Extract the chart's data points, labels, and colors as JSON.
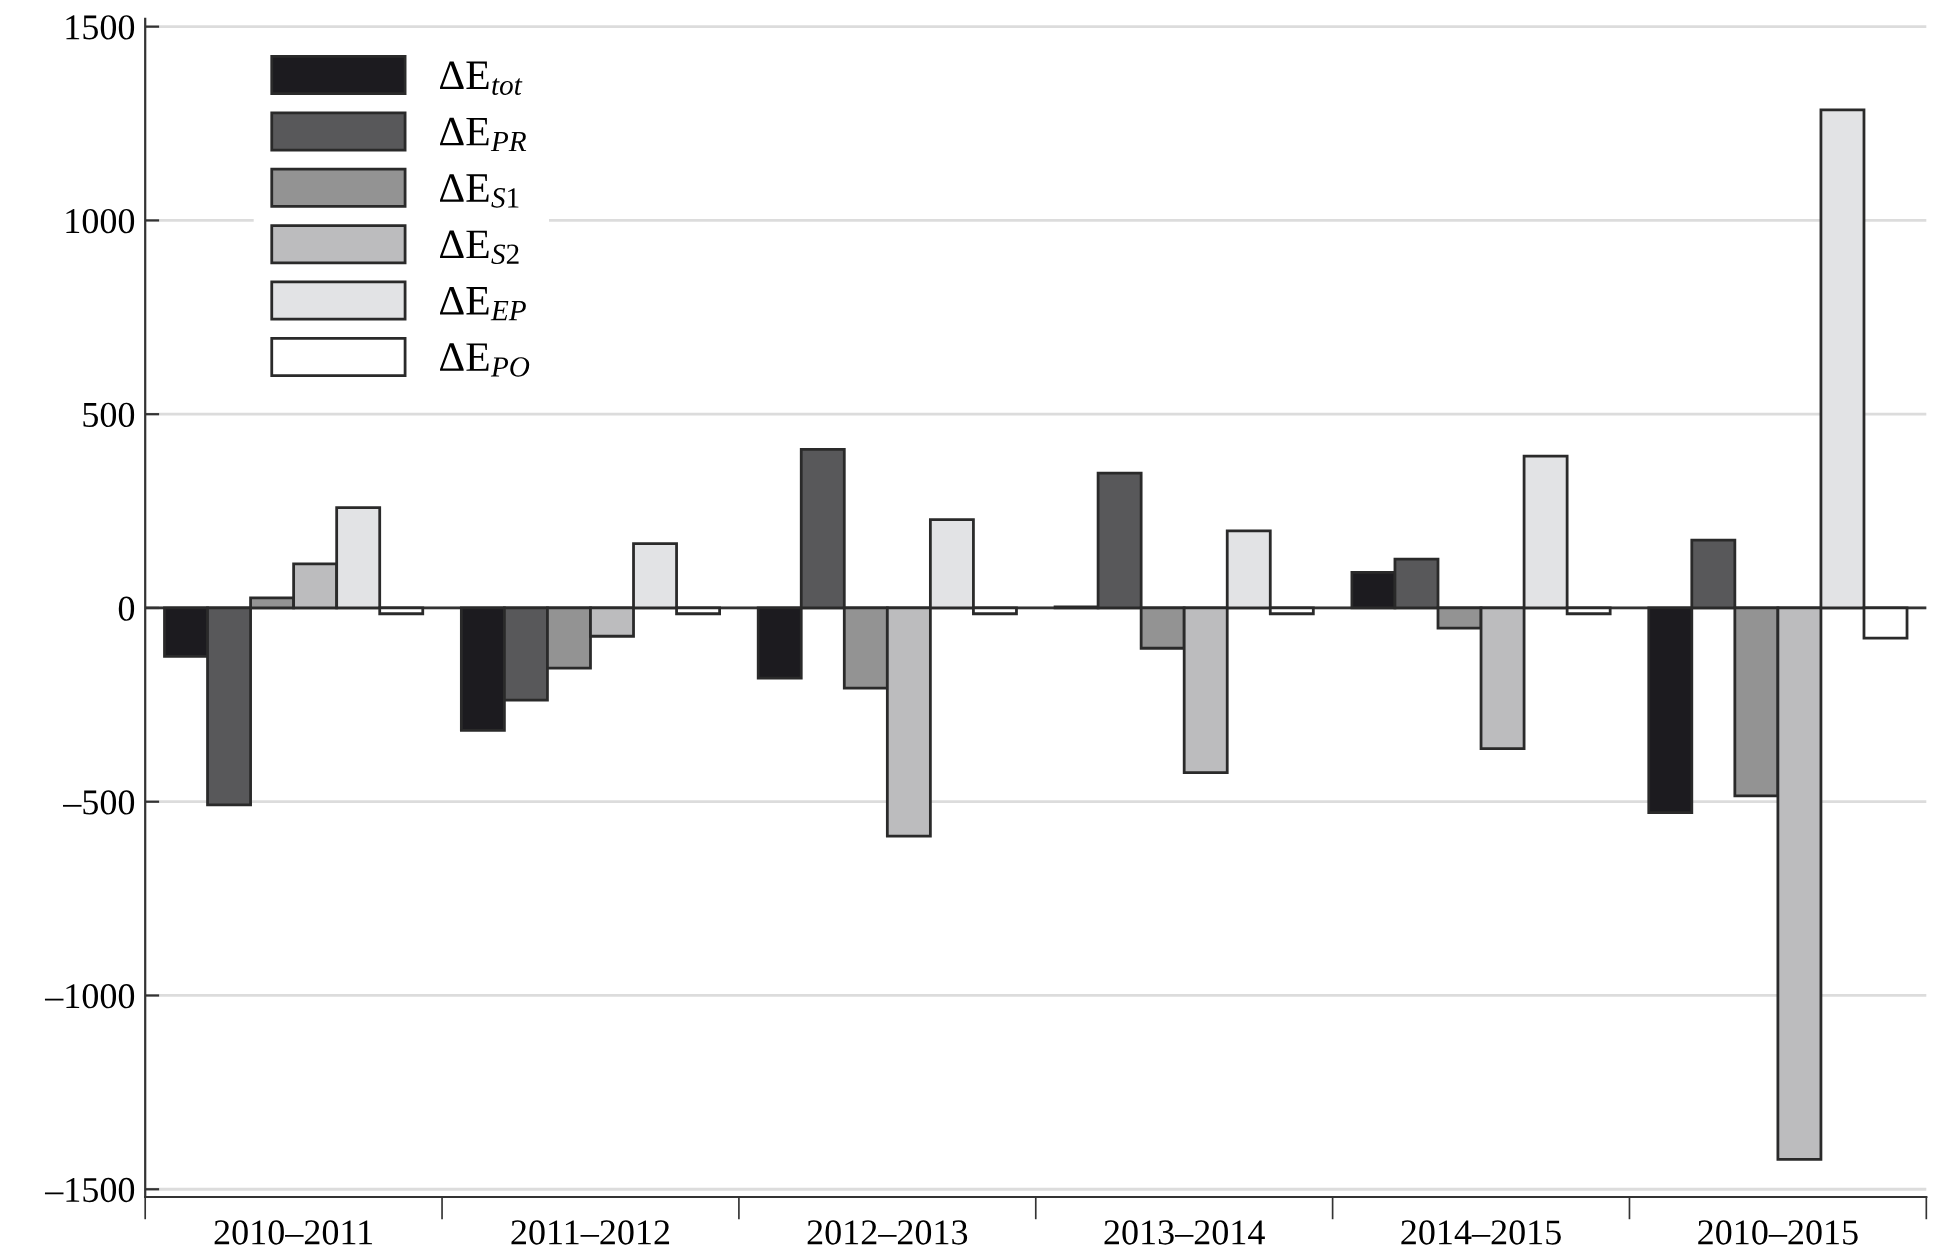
{
  "chart_data": {
    "type": "bar",
    "categories": [
      "2010–2011",
      "2011–2012",
      "2012–2013",
      "2013–2014",
      "2014–2015",
      "2010–2015"
    ],
    "series": [
      {
        "name": "ΔE$_{tot}$",
        "color": "#1c1b1f",
        "values": [
          -125,
          -316,
          -181,
          3,
          92,
          -528
        ]
      },
      {
        "name": "ΔE$_{PR}$",
        "color": "#58585a",
        "values": [
          -508,
          -238,
          409,
          348,
          126,
          175
        ]
      },
      {
        "name": "ΔE$_{S1}$",
        "color": "#939393",
        "values": [
          26,
          -155,
          -207,
          -104,
          -52,
          -485
        ]
      },
      {
        "name": "ΔE$_{S2}$",
        "color": "#bcbcbe",
        "values": [
          114,
          -73,
          -589,
          -425,
          -363,
          -1423
        ]
      },
      {
        "name": "ΔE$_{EP}$",
        "color": "#e2e3e5",
        "values": [
          259,
          166,
          228,
          199,
          392,
          1285
        ]
      },
      {
        "name": "ΔE$_{PO}$",
        "color": "#ffffff",
        "values": [
          -15,
          -15,
          -15,
          -15,
          -15,
          -78
        ]
      }
    ],
    "ylim": [
      -1520,
      1520
    ],
    "yticks": [
      {
        "value": -1500,
        "label": "–1500"
      },
      {
        "value": -1000,
        "label": "–1000"
      },
      {
        "value": -500,
        "label": "–500"
      },
      0,
      500,
      1000,
      1500
    ],
    "grid": "y",
    "legend": "top left"
  }
}
